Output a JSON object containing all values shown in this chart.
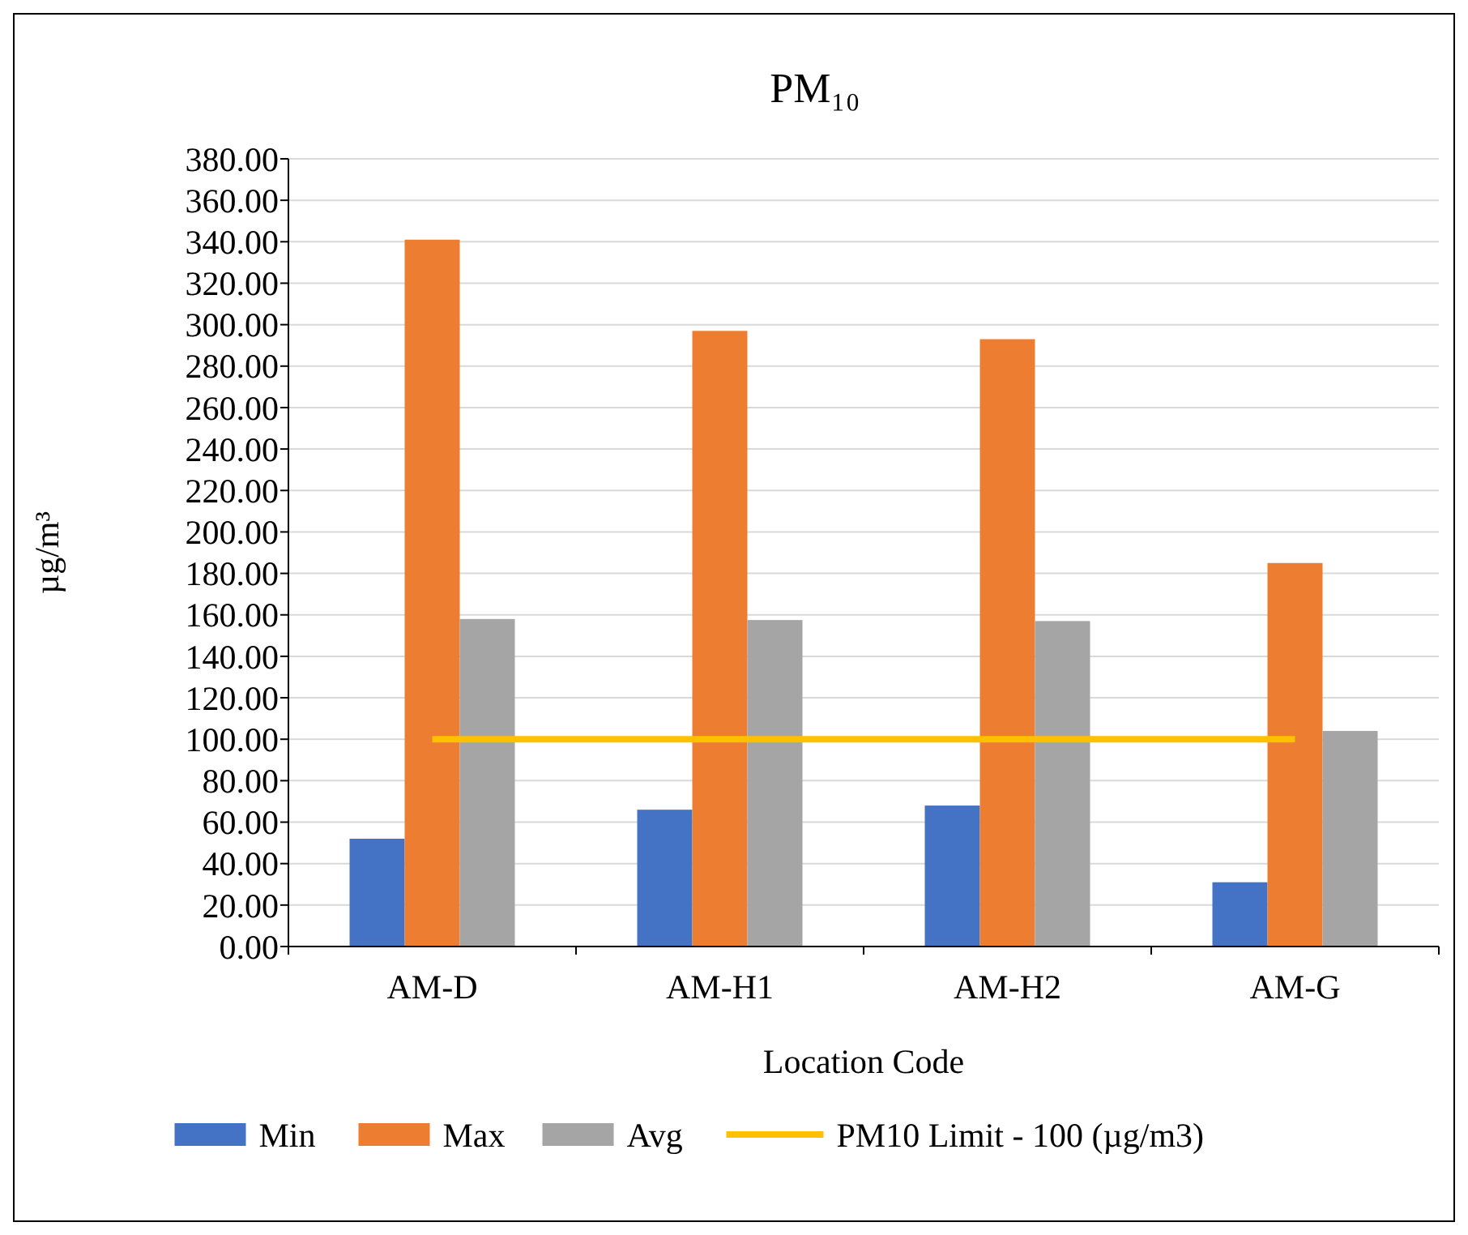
{
  "chart_data": {
    "type": "bar",
    "title": "PM₁₀",
    "xlabel": "Location Code",
    "ylabel": "µg/m³",
    "categories": [
      "AM-D",
      "AM-H1",
      "AM-H2",
      "AM-G"
    ],
    "series": [
      {
        "name": "Min",
        "color": "#4472c4",
        "values": [
          52,
          66,
          68,
          31
        ]
      },
      {
        "name": "Max",
        "color": "#ed7d31",
        "values": [
          341,
          297,
          293,
          185
        ]
      },
      {
        "name": "Avg",
        "color": "#a5a5a5",
        "values": [
          158,
          157.5,
          157,
          104
        ]
      },
      {
        "name": "PM10 Limit - 100 (µg/m3)",
        "type": "line",
        "color": "#ffc000",
        "values": [
          100,
          100,
          100,
          100
        ]
      }
    ],
    "ylim": [
      0,
      380
    ],
    "yticks": [
      {
        "value": 0,
        "label": "0.00"
      },
      {
        "value": 20,
        "label": "20.00"
      },
      {
        "value": 40,
        "label": "40.00"
      },
      {
        "value": 60,
        "label": "60.00"
      },
      {
        "value": 80,
        "label": "80.00"
      },
      {
        "value": 100,
        "label": "100.00"
      },
      {
        "value": 120,
        "label": "120.00"
      },
      {
        "value": 140,
        "label": "140.00"
      },
      {
        "value": 160,
        "label": "160.00"
      },
      {
        "value": 180,
        "label": "180.00"
      },
      {
        "value": 200,
        "label": "200.00"
      },
      {
        "value": 220,
        "label": "220.00"
      },
      {
        "value": 240,
        "label": "240.00"
      },
      {
        "value": 260,
        "label": "260.00"
      },
      {
        "value": 280,
        "label": "280.00"
      },
      {
        "value": 300,
        "label": "300.00"
      },
      {
        "value": 320,
        "label": "320.00"
      },
      {
        "value": 340,
        "label": "340.00"
      },
      {
        "value": 360,
        "label": "360.00"
      },
      {
        "value": 380,
        "label": "380.00"
      }
    ],
    "grid": "y",
    "legend": "bottom"
  }
}
